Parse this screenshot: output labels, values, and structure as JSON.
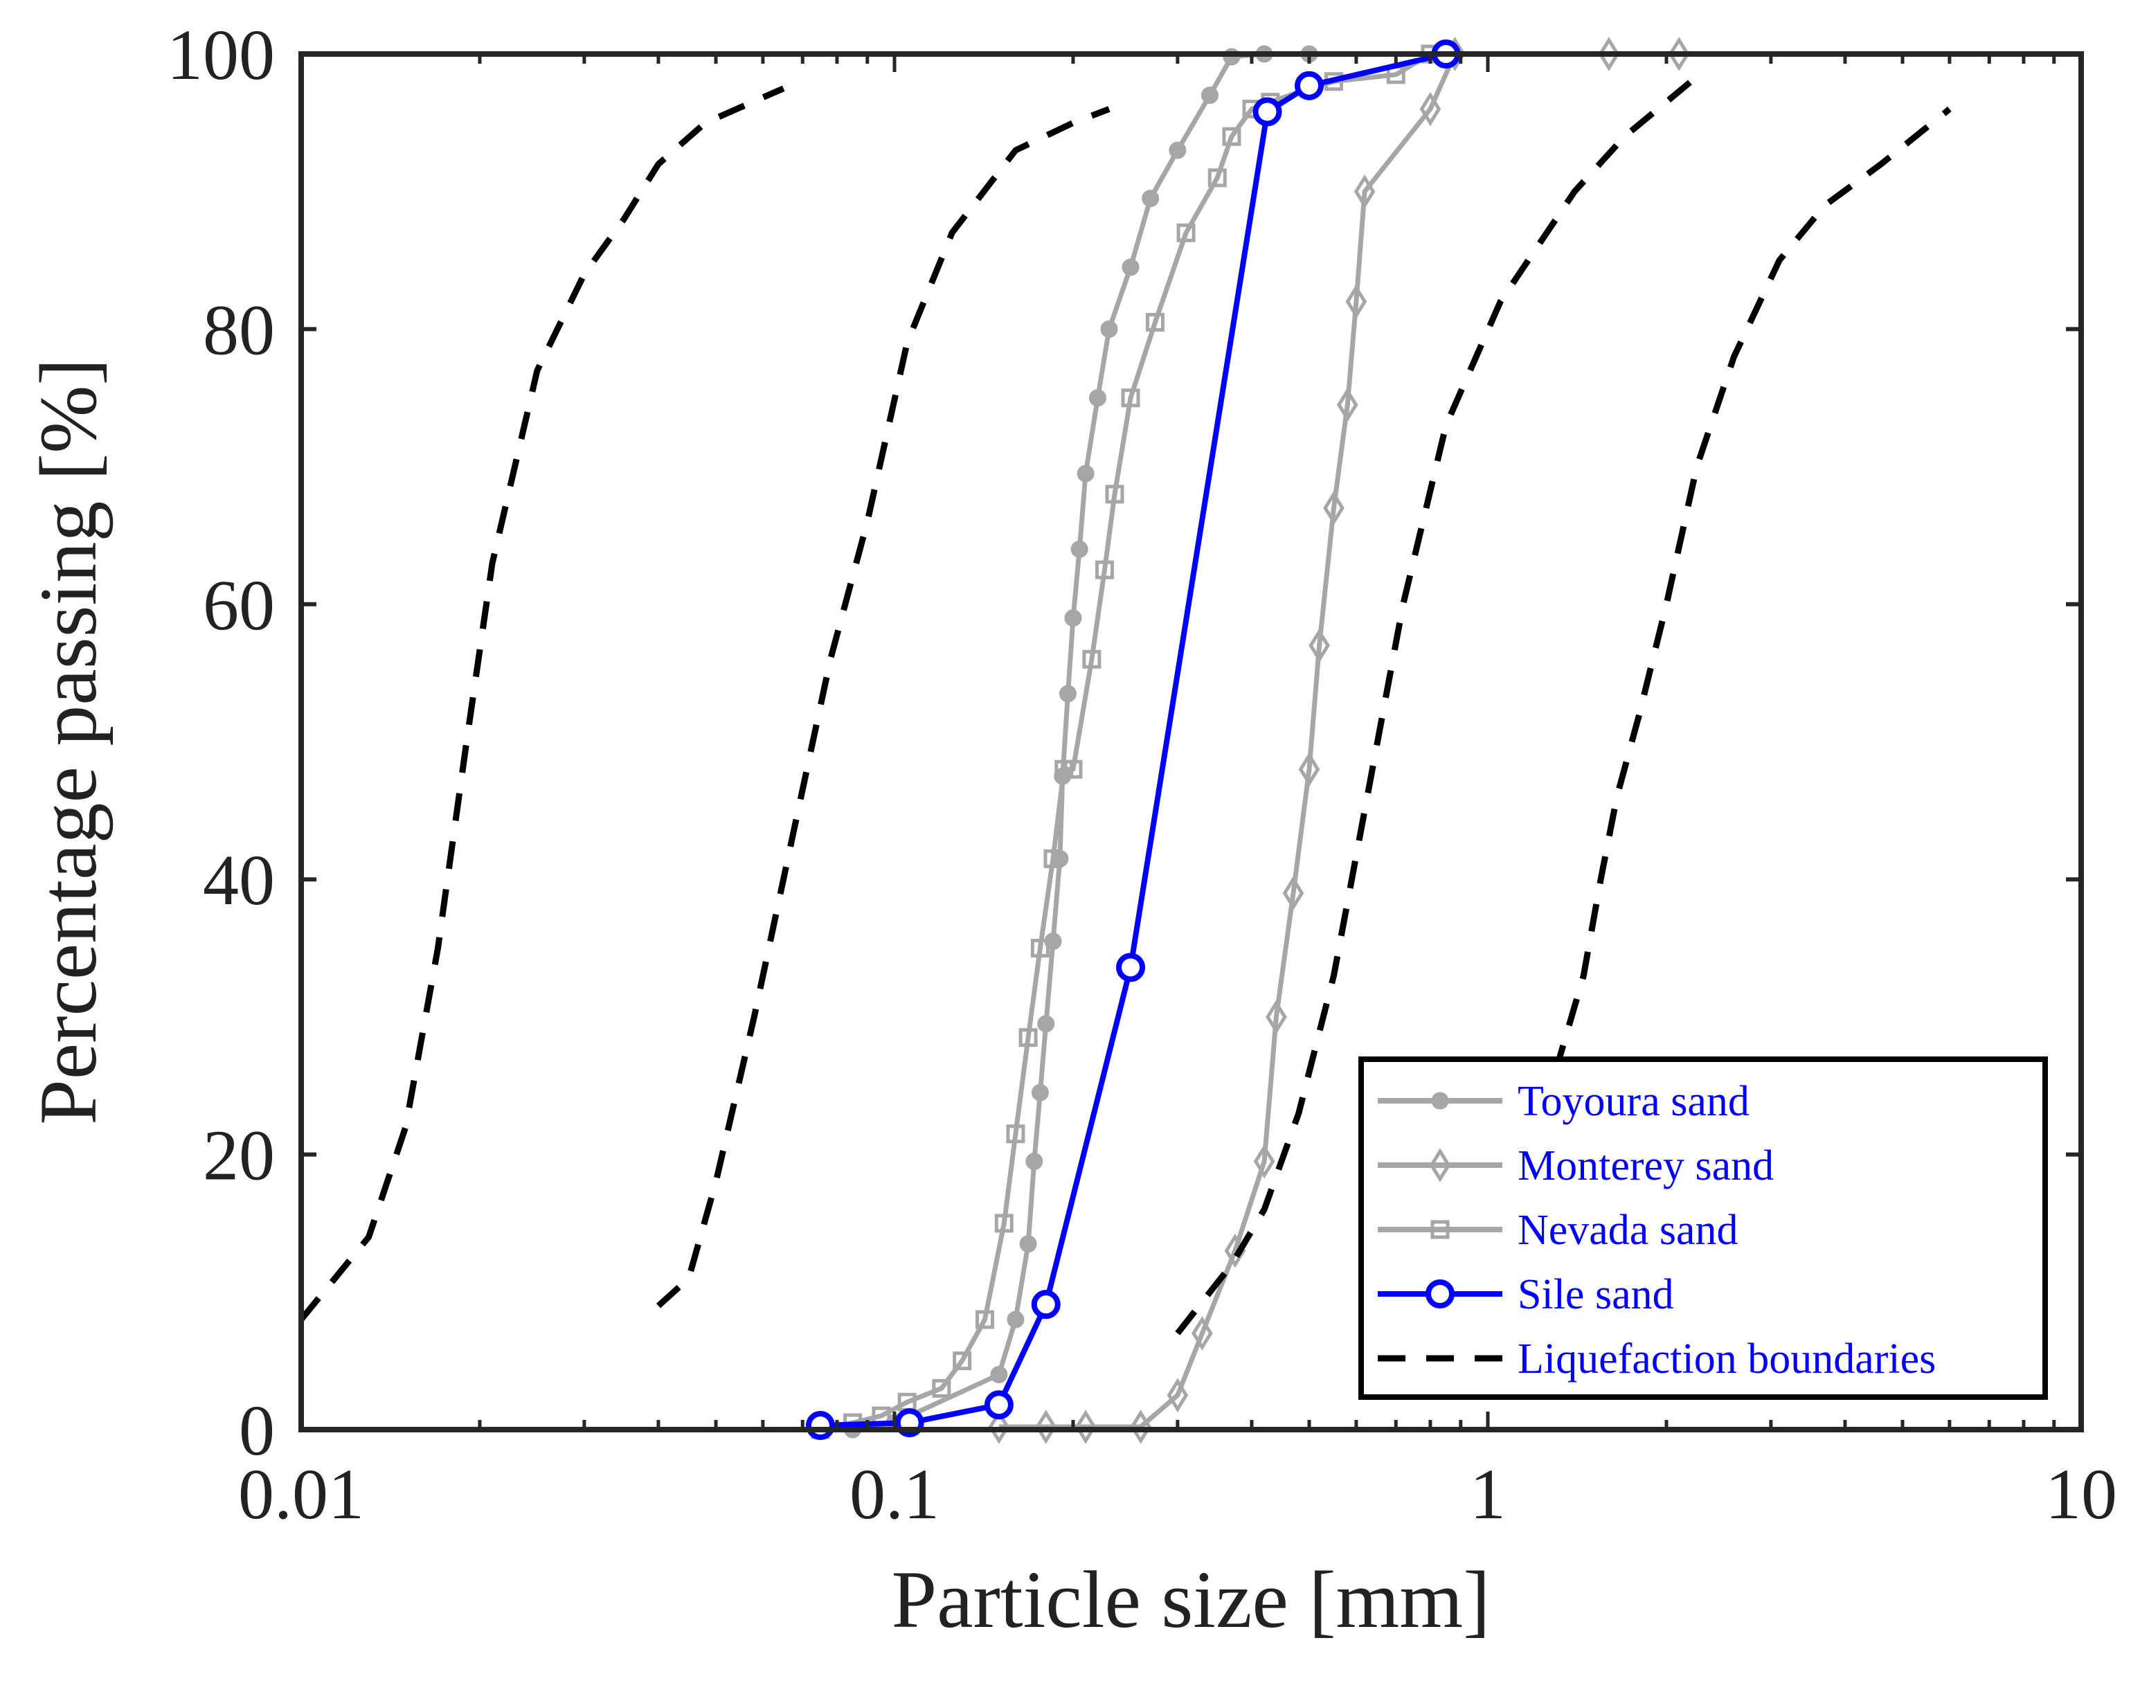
{
  "chart_data": {
    "type": "line",
    "title": "",
    "xlabel": "Particle size [mm]",
    "ylabel": "Percentage passing [%]",
    "xscale": "log",
    "xlim": [
      0.01,
      10
    ],
    "ylim": [
      0,
      100
    ],
    "xticks": [
      0.01,
      0.1,
      1,
      10
    ],
    "xtick_labels": [
      "0.01",
      "0.1",
      "1",
      "10"
    ],
    "yticks": [
      0,
      20,
      40,
      60,
      80,
      100
    ],
    "ytick_labels": [
      "0",
      "20",
      "40",
      "60",
      "80",
      "100"
    ],
    "grid": false,
    "legend_position": "bottom-right",
    "colors": {
      "gray": "#a6a6a6",
      "blue": "#0000ff",
      "black": "#000000"
    },
    "series": [
      {
        "name": "Toyoura sand",
        "color": "#a6a6a6",
        "marker": "circle-filled",
        "linestyle": "solid",
        "x": [
          0.075,
          0.085,
          0.1,
          0.15,
          0.16,
          0.168,
          0.172,
          0.176,
          0.18,
          0.185,
          0.19,
          0.192,
          0.196,
          0.2,
          0.205,
          0.21,
          0.22,
          0.23,
          0.25,
          0.27,
          0.3,
          0.34,
          0.37,
          0.42,
          0.5
        ],
        "y": [
          0,
          0,
          0.5,
          4,
          8,
          13.5,
          19.5,
          24.5,
          29.5,
          35.5,
          41.5,
          47.5,
          53.5,
          59,
          64,
          69.5,
          75,
          80,
          84.5,
          89.5,
          93,
          97,
          99.8,
          100,
          100
        ]
      },
      {
        "name": "Monterey sand",
        "color": "#a6a6a6",
        "marker": "diamond",
        "linestyle": "solid",
        "x": [
          0.15,
          0.18,
          0.21,
          0.26,
          0.3,
          0.33,
          0.375,
          0.42,
          0.44,
          0.47,
          0.5,
          0.52,
          0.55,
          0.58,
          0.6,
          0.62,
          0.8,
          0.88,
          1.6,
          2.1
        ],
        "y": [
          0.2,
          0.2,
          0.2,
          0.2,
          2.5,
          7,
          13,
          19.5,
          30,
          39,
          48,
          57,
          67,
          74.5,
          82,
          90,
          96,
          100,
          100,
          100
        ]
      },
      {
        "name": "Nevada sand",
        "color": "#a6a6a6",
        "marker": "square",
        "linestyle": "solid",
        "x": [
          0.075,
          0.085,
          0.095,
          0.105,
          0.12,
          0.13,
          0.142,
          0.153,
          0.16,
          0.168,
          0.176,
          0.185,
          0.193,
          0.2,
          0.215,
          0.226,
          0.235,
          0.25,
          0.275,
          0.31,
          0.35,
          0.37,
          0.4,
          0.43,
          0.5,
          0.55,
          0.7,
          0.8
        ],
        "y": [
          0,
          0.5,
          1,
          2,
          3,
          5,
          8,
          15,
          21.5,
          28.5,
          35,
          41.5,
          48,
          48,
          56,
          62.5,
          68,
          75,
          80.5,
          87,
          91,
          94,
          96,
          96.5,
          97.5,
          98,
          98.5,
          100
        ]
      },
      {
        "name": "Sile sand",
        "color": "#0000ff",
        "marker": "circle-open",
        "linestyle": "solid",
        "x": [
          0.075,
          0.106,
          0.15,
          0.18,
          0.25,
          0.425,
          0.5,
          0.85
        ],
        "y": [
          0.3,
          0.5,
          1.8,
          9.1,
          33.6,
          95.8,
          97.7,
          100
        ]
      },
      {
        "name": "Liquefaction boundaries",
        "color": "#000000",
        "marker": "none",
        "linestyle": "dashed",
        "curves": [
          {
            "x": [
              0.01,
              0.013,
              0.015,
              0.017,
              0.019,
              0.021,
              0.025,
              0.03,
              0.035,
              0.04,
              0.048,
              0.065
            ],
            "y": [
              8,
              14,
              22,
              35,
              50,
              63,
              77,
              84,
              88,
              92,
              95,
              97.5
            ]
          },
          {
            "x": [
              0.04,
              0.045,
              0.05,
              0.058,
              0.068,
              0.078,
              0.09,
              0.105,
              0.125,
              0.16,
              0.2,
              0.23
            ],
            "y": [
              9,
              11,
              18,
              30,
              44,
              56,
              66,
              79,
              87,
              93,
              95,
              96
            ]
          },
          {
            "x": [
              0.3,
              0.37,
              0.42,
              0.48,
              0.55,
              0.62,
              0.72,
              0.85,
              1.05,
              1.4,
              1.7,
              2.2
            ],
            "y": [
              7,
              12,
              16,
              23,
              33,
              45,
              60,
              73,
              82,
              90,
              94,
              98
            ]
          },
          {
            "x": [
              1.3,
              1.45,
              1.55,
              1.65,
              1.8,
              2.0,
              2.25,
              2.6,
              3.1,
              3.7,
              4.6,
              6.0
            ],
            "y": [
              26,
              33,
              40,
              46,
              52,
              60,
              70,
              78,
              85,
              89,
              92,
              96
            ]
          }
        ]
      }
    ]
  }
}
